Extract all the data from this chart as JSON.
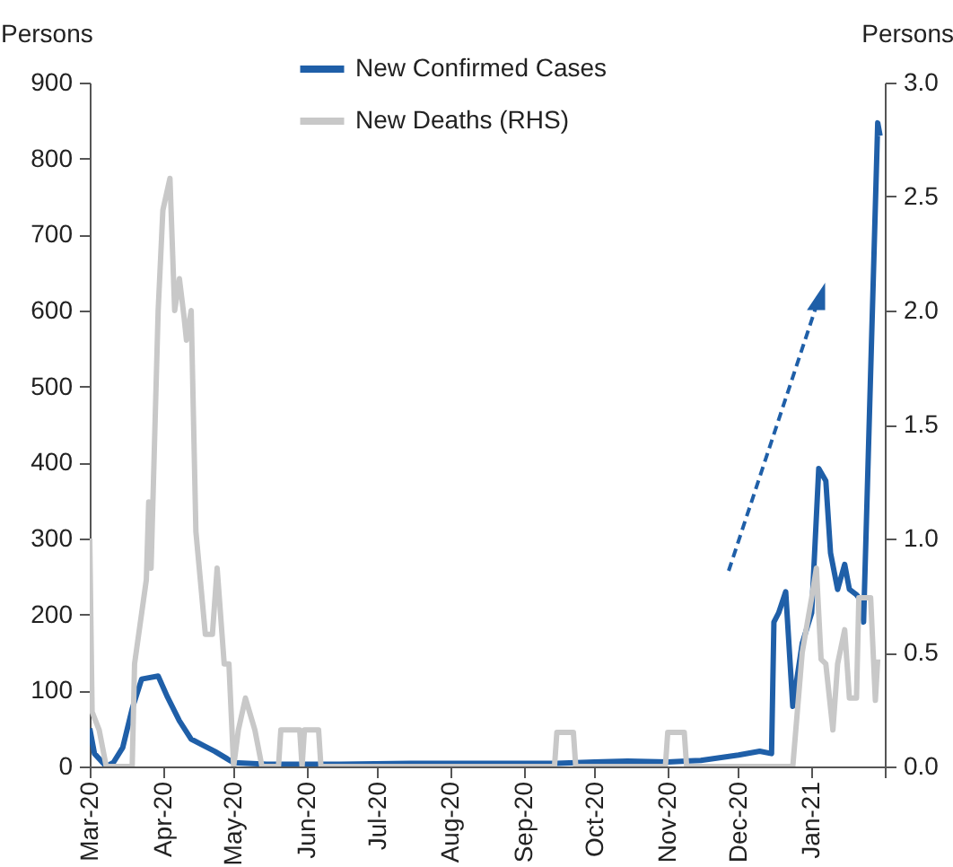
{
  "chart_data": {
    "type": "line",
    "ylabel": "Persons",
    "y2label": "Persons",
    "legend": "top",
    "xlim": [
      "2020-03-01",
      "2021-02-01"
    ],
    "xticks": [
      {
        "value": "2020-03",
        "label": "Mar-20"
      },
      {
        "value": "2020-04",
        "label": "Apr-20"
      },
      {
        "value": "2020-05",
        "label": "May-20"
      },
      {
        "value": "2020-06",
        "label": "Jun-20"
      },
      {
        "value": "2020-07",
        "label": "Jul-20"
      },
      {
        "value": "2020-08",
        "label": "Aug-20"
      },
      {
        "value": "2020-09",
        "label": "Sep-20"
      },
      {
        "value": "2020-10",
        "label": "Oct-20"
      },
      {
        "value": "2020-11",
        "label": "Nov-20"
      },
      {
        "value": "2020-12",
        "label": "Dec-20"
      },
      {
        "value": "2021-01",
        "label": "Jan-21"
      },
      {
        "value": "2021-02",
        "label": null
      }
    ],
    "ylim": [
      0,
      900
    ],
    "yticks": [
      0,
      100,
      200,
      300,
      400,
      500,
      600,
      700,
      800,
      900
    ],
    "y2lim": [
      0,
      3
    ],
    "y2ticks": [
      {
        "value": 0,
        "label": "0.0"
      },
      {
        "value": 0.5,
        "label": "0.5"
      },
      {
        "value": 1,
        "label": "1.0"
      },
      {
        "value": 1.5,
        "label": "1.5"
      },
      {
        "value": 2,
        "label": "2.0"
      },
      {
        "value": 2.5,
        "label": "2.5"
      },
      {
        "value": 3,
        "label": "3.0"
      }
    ],
    "series": [
      {
        "name": "New Confirmed Cases",
        "color": "#1f5fa8",
        "x": [
          "2020-03-01",
          "2020-03-03",
          "2020-03-08",
          "2020-03-11",
          "2020-03-15",
          "2020-03-19",
          "2020-03-23",
          "2020-03-30",
          "2020-04-03",
          "2020-04-08",
          "2020-04-13",
          "2020-04-18",
          "2020-04-23",
          "2020-05-01",
          "2020-05-15",
          "2020-06-15",
          "2020-07-15",
          "2020-08-15",
          "2020-09-15",
          "2020-10-01",
          "2020-10-15",
          "2020-11-01",
          "2020-11-15",
          "2020-12-01",
          "2020-12-10",
          "2020-12-15",
          "2020-12-16",
          "2020-12-18",
          "2020-12-21",
          "2020-12-24",
          "2020-12-28",
          "2021-01-01",
          "2021-01-04",
          "2021-01-07",
          "2021-01-09",
          "2021-01-12",
          "2021-01-15",
          "2021-01-17",
          "2021-01-20",
          "2021-01-22",
          "2021-01-23",
          "2021-01-29",
          "2021-01-30"
        ],
        "values": [
          50,
          17,
          0,
          5,
          25,
          76,
          115,
          119,
          91,
          60,
          36,
          28,
          20,
          5,
          3,
          3,
          4,
          4,
          4,
          6,
          7,
          6,
          8,
          15,
          20,
          17,
          190,
          202,
          230,
          79,
          162,
          202,
          392,
          376,
          281,
          233,
          266,
          233,
          226,
          218,
          190,
          847,
          830
        ]
      },
      {
        "name": "New Deaths (RHS)",
        "color": "#c8c8c8",
        "axis": "y2",
        "x": [
          "2020-03-01",
          "2020-03-02",
          "2020-03-05",
          "2020-03-08",
          "2020-03-19",
          "2020-03-20",
          "2020-03-25",
          "2020-03-26",
          "2020-03-27",
          "2020-03-30",
          "2020-04-01",
          "2020-04-04",
          "2020-04-06",
          "2020-04-08",
          "2020-04-10",
          "2020-04-11",
          "2020-04-13",
          "2020-04-15",
          "2020-04-19",
          "2020-04-22",
          "2020-04-24",
          "2020-04-27",
          "2020-04-29",
          "2020-05-01",
          "2020-05-03",
          "2020-05-06",
          "2020-05-10",
          "2020-05-13",
          "2020-05-20",
          "2020-05-21",
          "2020-05-29",
          "2020-05-30",
          "2020-05-31",
          "2020-06-06",
          "2020-06-07",
          "2020-09-14",
          "2020-09-15",
          "2020-09-22",
          "2020-09-23",
          "2020-10-31",
          "2020-11-01",
          "2020-11-08",
          "2020-11-09",
          "2020-12-24",
          "2020-12-28",
          "2021-01-01",
          "2021-01-03",
          "2021-01-05",
          "2021-01-07",
          "2021-01-10",
          "2021-01-12",
          "2021-01-15",
          "2021-01-17",
          "2021-01-20",
          "2021-01-21",
          "2021-01-26",
          "2021-01-28",
          "2021-01-29"
        ],
        "values": [
          1.0,
          0.24,
          0.16,
          0,
          0,
          0.45,
          0.82,
          1.16,
          0.87,
          2.0,
          2.44,
          2.58,
          2.0,
          2.14,
          1.97,
          1.87,
          2.0,
          1.03,
          0.58,
          0.58,
          0.87,
          0.45,
          0.45,
          0,
          0.16,
          0.3,
          0.16,
          0,
          0,
          0.16,
          0.16,
          0,
          0.16,
          0.16,
          0,
          0,
          0.15,
          0.15,
          0,
          0,
          0.15,
          0.15,
          0,
          0,
          0.5,
          0.74,
          0.87,
          0.47,
          0.45,
          0.16,
          0.45,
          0.6,
          0.3,
          0.3,
          0.74,
          0.74,
          0.29,
          0.47
        ]
      }
    ]
  }
}
